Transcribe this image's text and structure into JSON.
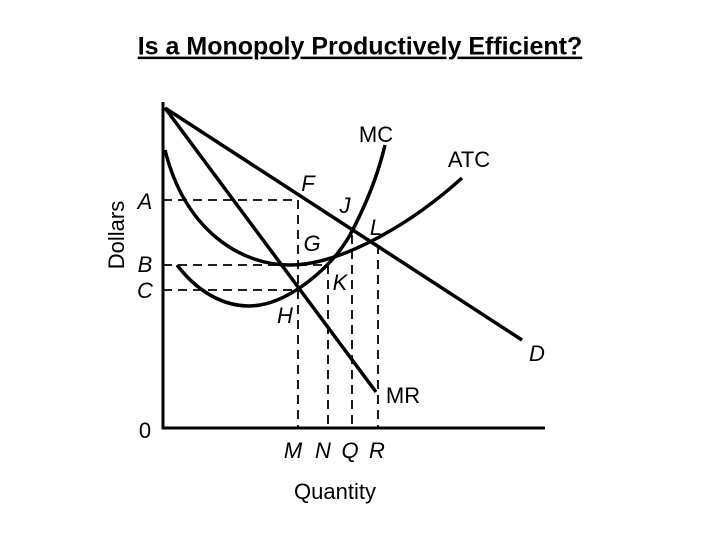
{
  "title": "Is a Monopoly Productively Efficient?",
  "axes": {
    "y_label": "Dollars",
    "x_label": "Quantity",
    "origin": "0",
    "y_points": [
      "A",
      "B",
      "C"
    ],
    "x_points": [
      "M",
      "N",
      "Q",
      "R"
    ]
  },
  "curves": [
    "MC",
    "ATC",
    "D",
    "MR"
  ],
  "points": [
    "F",
    "J",
    "L",
    "G",
    "K",
    "H"
  ]
}
